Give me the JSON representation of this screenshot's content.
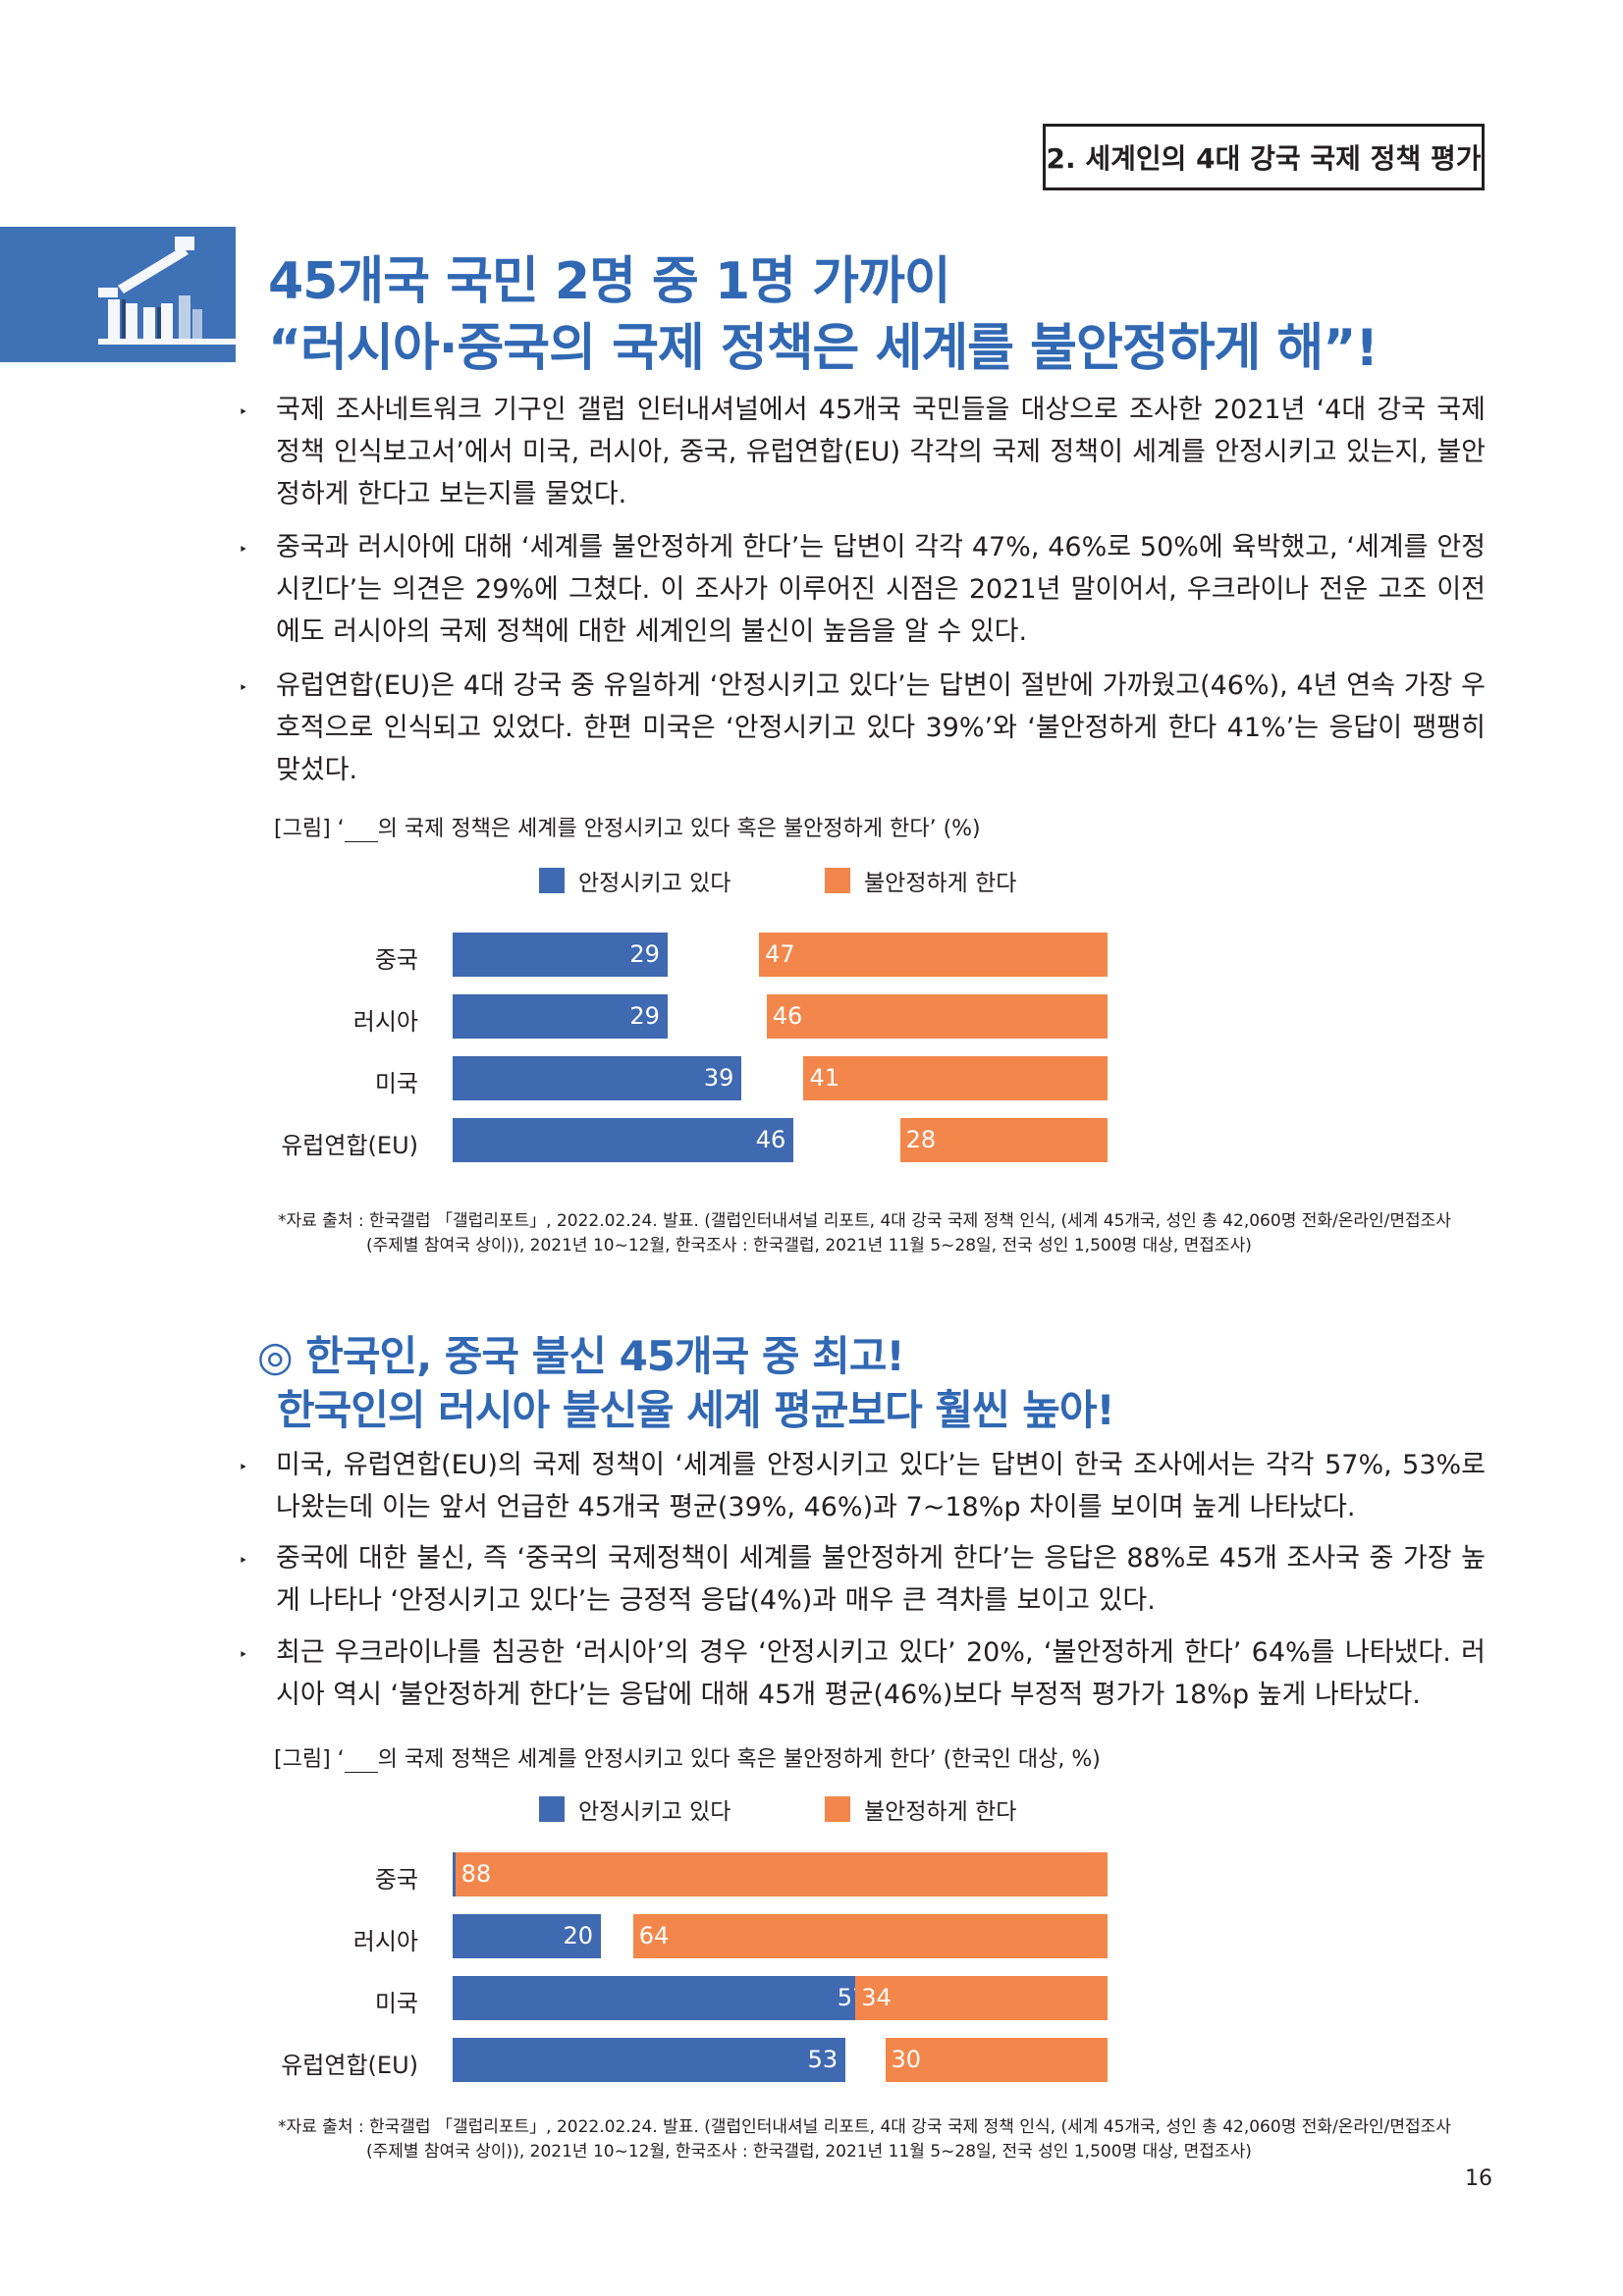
{
  "header": {
    "section": "2. 세계인의 4대 강국 국제 정책 평가"
  },
  "section1": {
    "title_line1": "45개국 국민 2명 중 1명 가까이",
    "title_line2": "“러시아·중국의 국제 정책은 세계를 불안정하게 해”!",
    "bullet": "‣",
    "paragraphs": [
      "국제 조사네트워크 기구인 갤럽 인터내셔널에서 45개국 국민들을 대상으로 조사한 2021년 ‘4대 강국 국제 정책 인식보고서’에서 미국, 러시아, 중국, 유럽연합(EU) 각각의 국제 정책이 세계를 안정시키고 있는지, 불안정하게 한다고 보는지를 물었다.",
      "중국과 러시아에 대해 ‘세계를 불안정하게 한다’는 답변이 각각 47%, 46%로 50%에 육박했고, ‘세계를 안정시킨다’는 의견은 29%에 그쳤다. 이 조사가 이루어진 시점은 2021년 말이어서, 우크라이나 전운 고조 이전에도 러시아의 국제 정책에 대한 세계인의 불신이 높음을 알 수 있다.",
      "유럽연합(EU)은 4대 강국 중 유일하게 ‘안정시키고 있다’는 답변이 절반에 가까웠고(46%), 4년 연속 가장 우호적으로 인식되고 있었다. 한편 미국은 ‘안정시키고 있다 39%’와 ‘불안정하게 한다 41%’는 응답이 팽팽히 맞섰다."
    ],
    "figure_caption_pre": "[그림] ‘",
    "figure_caption_post": "의 국제 정책은 세계를 안정시키고 있다 혹은 불안정하게 한다’ (%)",
    "source_line1": "*자료 출처 : 한국갤럽 「갤럽리포트」, 2022.02.24. 발표. (갤럽인터내셔널 리포트, 4대 강국 국제 정책 인식, (세계 45개국, 성인 총 42,060명 전화/온라인/면접조사",
    "source_line2": "(주제별 참여국 상이)), 2021년 10~12월, 한국조사 : 한국갤럽, 2021년 11월 5~28일, 전국 성인 1,500명 대상, 면접조사)"
  },
  "section2": {
    "title_line1": "◎ 한국인, 중국 불신 45개국 중 최고!",
    "title_line2": "한국인의 러시아 불신율 세계 평균보다 훨씬 높아!",
    "bullet": "‣",
    "paragraphs": [
      "미국, 유럽연합(EU)의 국제 정책이 ‘세계를 안정시키고 있다’는 답변이 한국 조사에서는 각각 57%, 53%로 나왔는데 이는 앞서 언급한 45개국 평균(39%, 46%)과 7~18%p 차이를 보이며 높게 나타났다.",
      "중국에 대한 불신, 즉 ‘중국의 국제정책이 세계를 불안정하게 한다’는 응답은 88%로 45개 조사국 중 가장 높게 나타나 ‘안정시키고 있다’는 긍정적 응답(4%)과 매우 큰 격차를 보이고 있다.",
      "최근 우크라이나를 침공한 ‘러시아’의 경우 ‘안정시키고 있다’ 20%, ‘불안정하게 한다’ 64%를 나타냈다. 러시아 역시 ‘불안정하게 한다’는 응답에 대해 45개 평균(46%)보다 부정적 평가가 18%p 높게 나타났다."
    ],
    "figure_caption_pre": "[그림] ‘",
    "figure_caption_post": "의 국제 정책은 세계를 안정시키고 있다 혹은 불안정하게 한다’ (한국인 대상, %)",
    "source_line1": "*자료 출처 : 한국갤럽 「갤럽리포트」, 2022.02.24. 발표. (갤럽인터내셔널 리포트, 4대 강국 국제 정책 인식, (세계 45개국, 성인 총 42,060명 전화/온라인/면접조사",
    "source_line2": "(주제별 참여국 상이)), 2021년 10~12월, 한국조사 : 한국갤럽, 2021년 11월 5~28일, 전국 성인 1,500명 대상, 면접조사)"
  },
  "page_number": "16",
  "colors": {
    "stable": "#3f69b0",
    "unstable": "#f3874b",
    "title": "#3168b3"
  },
  "chart_data": [
    {
      "type": "bar",
      "categories": [
        "중국",
        "러시아",
        "미국",
        "유럽연합(EU)"
      ],
      "series": [
        {
          "name": "안정시키고 있다",
          "values": [
            29,
            29,
            39,
            46
          ]
        },
        {
          "name": "불안정하게 한다",
          "values": [
            47,
            46,
            41,
            28
          ]
        }
      ],
      "legend": "top"
    },
    {
      "type": "bar",
      "categories": [
        "중국",
        "러시아",
        "미국",
        "유럽연합(EU)"
      ],
      "series": [
        {
          "name": "안정시키고 있다",
          "values": [
            4,
            20,
            57,
            53
          ]
        },
        {
          "name": "불안정하게 한다",
          "values": [
            88,
            64,
            34,
            30
          ]
        }
      ],
      "legend": "top"
    }
  ]
}
